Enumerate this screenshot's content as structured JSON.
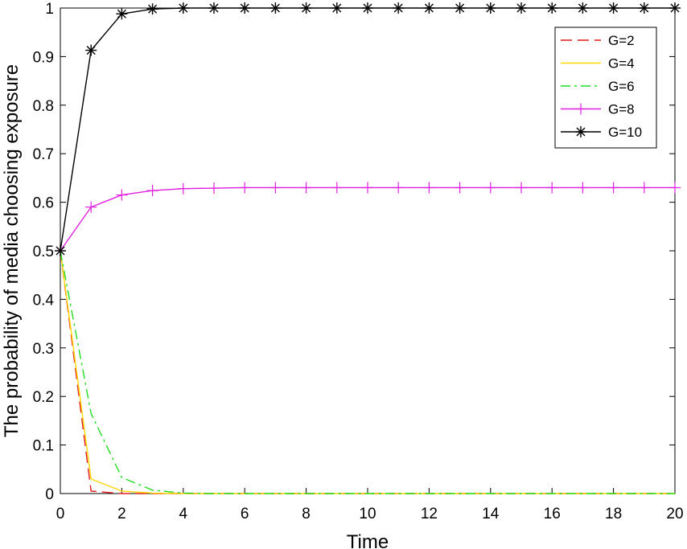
{
  "chart_data": {
    "type": "line",
    "title": "",
    "xlabel": "Time",
    "ylabel": "The probability of media choosing exposure",
    "xlim": [
      0,
      20
    ],
    "ylim": [
      0,
      1
    ],
    "xticks": [
      0,
      2,
      4,
      6,
      8,
      10,
      12,
      14,
      16,
      18,
      20
    ],
    "yticks": [
      0,
      0.1,
      0.2,
      0.3,
      0.4,
      0.5,
      0.6,
      0.7,
      0.8,
      0.9,
      1
    ],
    "xtick_labels": [
      "0",
      "2",
      "4",
      "6",
      "8",
      "10",
      "12",
      "14",
      "16",
      "18",
      "20"
    ],
    "ytick_labels": [
      "0",
      "0.1",
      "0.2",
      "0.3",
      "0.4",
      "0.5",
      "0.6",
      "0.7",
      "0.8",
      "0.9",
      "1"
    ],
    "grid": false,
    "legend_position": "top-right",
    "x": [
      0,
      1,
      2,
      3,
      4,
      5,
      6,
      7,
      8,
      9,
      10,
      11,
      12,
      13,
      14,
      15,
      16,
      17,
      18,
      19,
      20
    ],
    "series": [
      {
        "name": "G=2",
        "color": "#e41a1c",
        "dash": "dashed",
        "marker": "none",
        "values": [
          0.5,
          0.005,
          0,
          0,
          0,
          0,
          0,
          0,
          0,
          0,
          0,
          0,
          0,
          0,
          0,
          0,
          0,
          0,
          0,
          0,
          0
        ]
      },
      {
        "name": "G=4",
        "color": "#ffd700",
        "dash": "solid",
        "marker": "none",
        "values": [
          0.5,
          0.03,
          0.005,
          0.001,
          0,
          0,
          0,
          0,
          0,
          0,
          0,
          0,
          0,
          0,
          0,
          0,
          0,
          0,
          0,
          0,
          0
        ]
      },
      {
        "name": "G=6",
        "color": "#22dd22",
        "dash": "dashdot",
        "marker": "none",
        "values": [
          0.5,
          0.165,
          0.033,
          0.007,
          0.001,
          0,
          0,
          0,
          0,
          0,
          0,
          0,
          0,
          0,
          0,
          0,
          0,
          0,
          0,
          0,
          0
        ]
      },
      {
        "name": "G=8",
        "color": "#e020e0",
        "dash": "solid",
        "marker": "plus",
        "values": [
          0.5,
          0.59,
          0.615,
          0.624,
          0.628,
          0.629,
          0.63,
          0.63,
          0.63,
          0.63,
          0.63,
          0.63,
          0.63,
          0.63,
          0.63,
          0.63,
          0.63,
          0.63,
          0.63,
          0.63,
          0.63
        ]
      },
      {
        "name": "G=10",
        "color": "#000000",
        "dash": "solid",
        "marker": "asterisk",
        "values": [
          0.5,
          0.913,
          0.988,
          0.998,
          1,
          1,
          1,
          1,
          1,
          1,
          1,
          1,
          1,
          1,
          1,
          1,
          1,
          1,
          1,
          1,
          1
        ]
      }
    ]
  }
}
